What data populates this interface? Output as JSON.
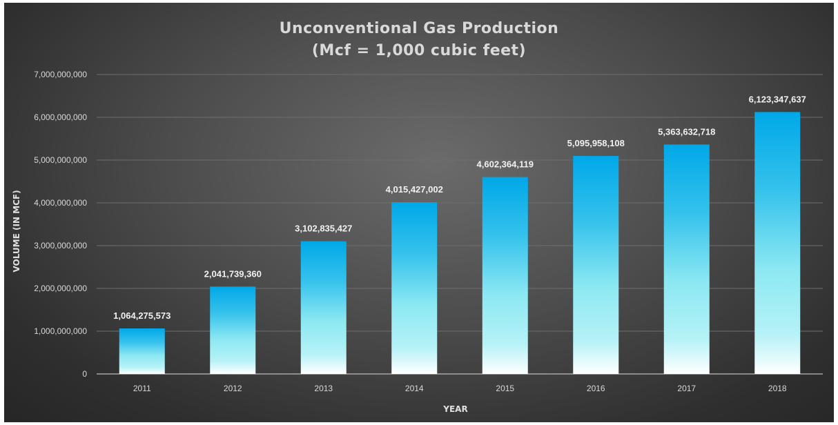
{
  "chart_data": {
    "type": "bar",
    "title_line1": "Unconventional Gas Production",
    "title_line2": "(Mcf = 1,000 cubic feet)",
    "xlabel": "YEAR",
    "ylabel": "VOLUME (IN MCF)",
    "categories": [
      "2011",
      "2012",
      "2013",
      "2014",
      "2015",
      "2016",
      "2017",
      "2018"
    ],
    "values": [
      1064275573,
      2041739360,
      3102835427,
      4015427002,
      4602364119,
      5095958108,
      5363632718,
      6123347637
    ],
    "value_labels": [
      "1,064,275,573",
      "2,041,739,360",
      "3,102,835,427",
      "4,015,427,002",
      "4,602,364,119",
      "5,095,958,108",
      "5,363,632,718",
      "6,123,347,637"
    ],
    "ylim": [
      0,
      7000000000
    ],
    "yticks": [
      {
        "value": 0,
        "label": "0"
      },
      {
        "value": 1000000000,
        "label": "1,000,000,000"
      },
      {
        "value": 2000000000,
        "label": "2,000,000,000"
      },
      {
        "value": 3000000000,
        "label": "3,000,000,000"
      },
      {
        "value": 4000000000,
        "label": "4,000,000,000"
      },
      {
        "value": 5000000000,
        "label": "5,000,000,000"
      },
      {
        "value": 6000000000,
        "label": "6,000,000,000"
      },
      {
        "value": 7000000000,
        "label": "7,000,000,000"
      }
    ],
    "grid": true,
    "legend": "none",
    "colors": {
      "bar_top": "#00a8e8",
      "bar_mid": "#8ce8f2",
      "bar_bottom": "#ffffff",
      "background": "#4a4a4a",
      "text": "#d9d9d9"
    }
  }
}
